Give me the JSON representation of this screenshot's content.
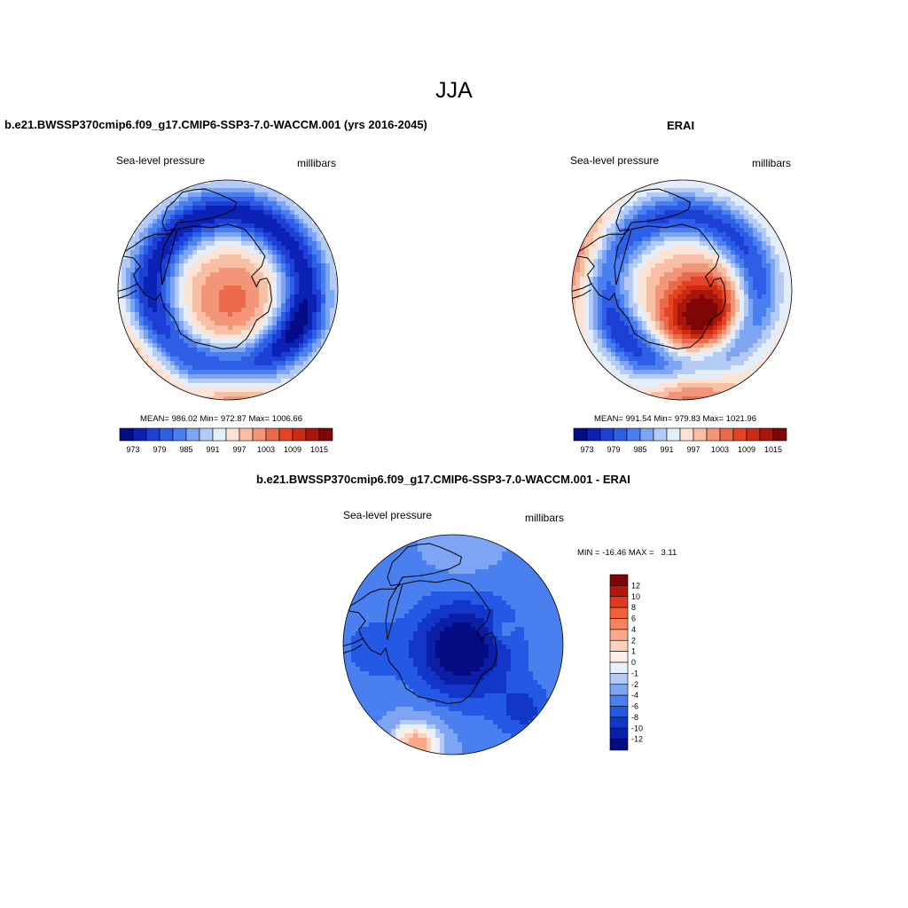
{
  "figure": {
    "season_title": "JJA"
  },
  "panels": {
    "model": {
      "title": "b.e21.BWSSP370cmip6.f09_g17.CMIP6-SSP3-7.0-WACCM.001 (yrs 2016-2045)",
      "variable": "Sea-level pressure",
      "units": "millibars",
      "stats": "MEAN= 986.02  Min= 972.87  Max= 1006.66"
    },
    "obs": {
      "title": "ERAI",
      "variable": "Sea-level pressure",
      "units": "millibars",
      "stats": "MEAN= 991.54  Min= 979.83  Max= 1021.96"
    },
    "diff": {
      "title": "b.e21.BWSSP370cmip6.f09_g17.CMIP6-SSP3-7.0-WACCM.001 - ERAI",
      "variable": "Sea-level pressure",
      "units": "millibars",
      "minmax": "MIN = -16.46 MAX =   3.11"
    }
  },
  "chart_data": [
    {
      "type": "heatmap",
      "projection": "south-polar-stereographic",
      "title": "b.e21.BWSSP370cmip6.f09_g17.CMIP6-SSP3-7.0-WACCM.001 (yrs 2016-2045)",
      "variable": "Sea-level pressure",
      "units": "millibars",
      "mean": 986.02,
      "min": 972.87,
      "max": 1006.66,
      "colorbar_levels": [
        970,
        973,
        976,
        979,
        982,
        985,
        988,
        991,
        994,
        997,
        1000,
        1003,
        1006,
        1009,
        1012,
        1015,
        1018
      ],
      "colorbar_tick_labels": [
        "973",
        "979",
        "985",
        "991",
        "997",
        "1003",
        "1009",
        "1015"
      ],
      "colorbar_colors": [
        "#050c87",
        "#0b22b4",
        "#1c3fd6",
        "#2f5ee6",
        "#4a7ff0",
        "#7ea5f3",
        "#b4cbf6",
        "#e4eefb",
        "#fde3d3",
        "#f8bfa4",
        "#f29578",
        "#ec6a4c",
        "#e44326",
        "#cc2b12",
        "#a8170a",
        "#7e0605"
      ]
    },
    {
      "type": "heatmap",
      "projection": "south-polar-stereographic",
      "title": "ERAI",
      "variable": "Sea-level pressure",
      "units": "millibars",
      "mean": 991.54,
      "min": 979.83,
      "max": 1021.96,
      "colorbar_levels": [
        970,
        973,
        976,
        979,
        982,
        985,
        988,
        991,
        994,
        997,
        1000,
        1003,
        1006,
        1009,
        1012,
        1015,
        1018
      ],
      "colorbar_tick_labels": [
        "973",
        "979",
        "985",
        "991",
        "997",
        "1003",
        "1009",
        "1015"
      ],
      "colorbar_colors": [
        "#050c87",
        "#0b22b4",
        "#1c3fd6",
        "#2f5ee6",
        "#4a7ff0",
        "#7ea5f3",
        "#b4cbf6",
        "#e4eefb",
        "#fde3d3",
        "#f8bfa4",
        "#f29578",
        "#ec6a4c",
        "#e44326",
        "#cc2b12",
        "#a8170a",
        "#7e0605"
      ]
    },
    {
      "type": "heatmap",
      "projection": "south-polar-stereographic",
      "title": "b.e21.BWSSP370cmip6.f09_g17.CMIP6-SSP3-7.0-WACCM.001 - ERAI",
      "variable": "Sea-level pressure",
      "units": "millibars",
      "min": -16.46,
      "max": 3.11,
      "colorbar_tick_labels": [
        "12",
        "10",
        "8",
        "6",
        "4",
        "2",
        "1",
        "0",
        "-1",
        "-2",
        "-4",
        "-6",
        "-8",
        "-10",
        "-12"
      ],
      "colorbar_colors": [
        "#7e0605",
        "#b2190b",
        "#e03a1c",
        "#f06236",
        "#f5845c",
        "#f8a98a",
        "#fbd0bc",
        "#fdeee6",
        "#e7f0fc",
        "#b4cbf6",
        "#7ea5f3",
        "#4a7ff0",
        "#2459e6",
        "#1236c8",
        "#0a1fa6",
        "#040c84"
      ]
    }
  ]
}
